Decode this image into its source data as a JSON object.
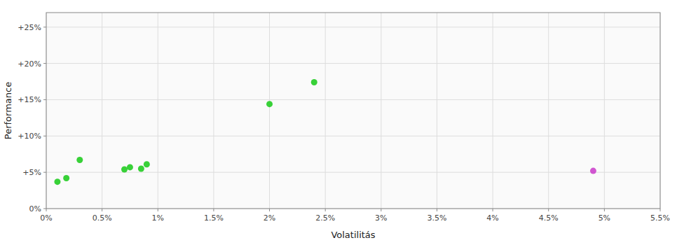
{
  "chart_data": {
    "type": "scatter",
    "xlabel": "Volatilitás",
    "ylabel": "Performance",
    "xlim": [
      0,
      0.055
    ],
    "ylim": [
      0,
      0.27
    ],
    "xticks": [
      {
        "value": 0,
        "label": "0%"
      },
      {
        "value": 0.005,
        "label": "0.5%"
      },
      {
        "value": 0.01,
        "label": "1%"
      },
      {
        "value": 0.015,
        "label": "1.5%"
      },
      {
        "value": 0.02,
        "label": "2%"
      },
      {
        "value": 0.025,
        "label": "2.5%"
      },
      {
        "value": 0.03,
        "label": "3%"
      },
      {
        "value": 0.035,
        "label": "3.5%"
      },
      {
        "value": 0.04,
        "label": "4%"
      },
      {
        "value": 0.045,
        "label": "4.5%"
      },
      {
        "value": 0.05,
        "label": "5%"
      },
      {
        "value": 0.055,
        "label": "5.5%"
      }
    ],
    "yticks": [
      {
        "value": 0,
        "label": "0%"
      },
      {
        "value": 0.05,
        "label": "+5%"
      },
      {
        "value": 0.1,
        "label": "+10%"
      },
      {
        "value": 0.15,
        "label": "+15%"
      },
      {
        "value": 0.2,
        "label": "+20%"
      },
      {
        "value": 0.25,
        "label": "+25%"
      }
    ],
    "grid": true,
    "series": [
      {
        "color": "#22cc22",
        "x": [
          0.001,
          0.0018,
          0.003,
          0.007,
          0.0075,
          0.0085,
          0.009,
          0.02,
          0.024
        ],
        "values": [
          0.037,
          0.042,
          0.067,
          0.054,
          0.057,
          0.055,
          0.061,
          0.144,
          0.174
        ]
      },
      {
        "color": "#cc44cc",
        "x": [
          0.049
        ],
        "values": [
          0.052
        ]
      }
    ]
  }
}
